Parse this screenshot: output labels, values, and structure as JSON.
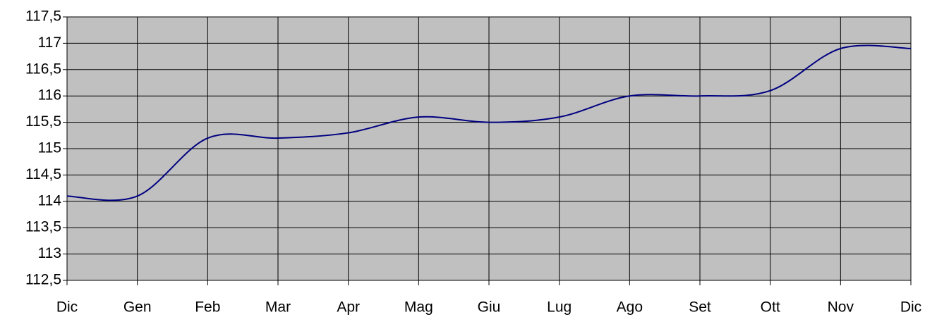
{
  "chart_data": {
    "type": "line",
    "categories": [
      "Dic",
      "Gen",
      "Feb",
      "Mar",
      "Apr",
      "Mag",
      "Giu",
      "Lug",
      "Ago",
      "Set",
      "Ott",
      "Nov",
      "Dic"
    ],
    "series": [
      {
        "color": "#000080",
        "values": [
          114.1,
          114.1,
          115.2,
          115.2,
          115.3,
          115.6,
          115.5,
          115.6,
          116.0,
          116.0,
          116.1,
          116.9,
          116.9
        ]
      }
    ],
    "ylim": [
      112.5,
      117.5
    ],
    "yticks": [
      {
        "value": 112.5,
        "label": "112,5"
      },
      113,
      {
        "value": 113.5,
        "label": "113,5"
      },
      114,
      {
        "value": 114.5,
        "label": "114,5"
      },
      115,
      {
        "value": 115.5,
        "label": "115,5"
      },
      116,
      {
        "value": 116.5,
        "label": "116,5"
      },
      117,
      {
        "value": 117.5,
        "label": "117,5"
      }
    ],
    "grid": true,
    "plot_background": "#c0c0c0"
  }
}
